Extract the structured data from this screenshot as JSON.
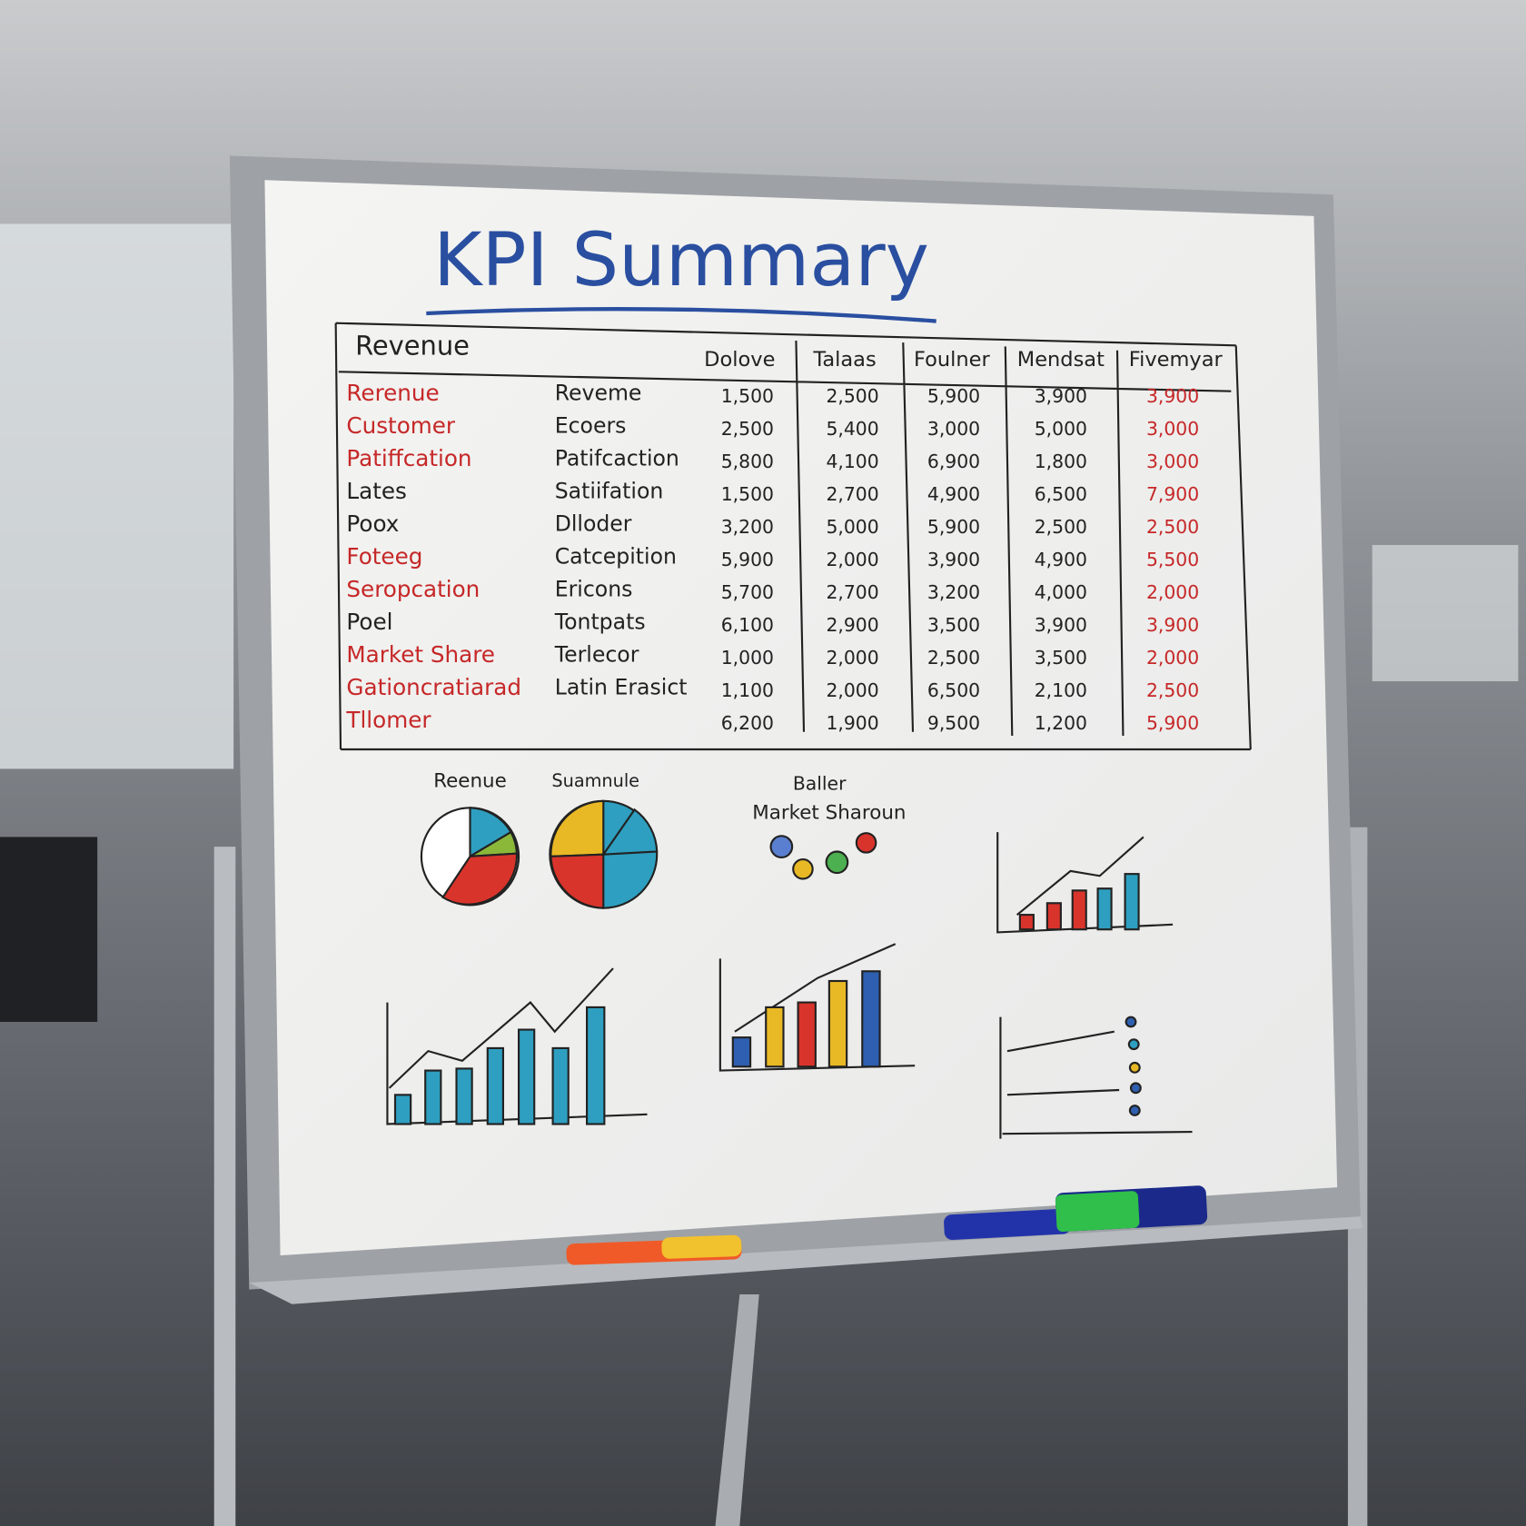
{
  "title": "KPI Summary",
  "table": {
    "header": [
      "Revenue",
      "Dolove",
      "Talaas",
      "Foulner",
      "Mendsat",
      "Fivemyar"
    ],
    "rows": [
      {
        "label": "Rerenue",
        "color": "#c62828",
        "sub": "Reveme",
        "cells": [
          "1,500",
          "2,500",
          "5,900",
          "3,900",
          "3,900"
        ]
      },
      {
        "label": "Customer",
        "color": "#c62828",
        "sub": "Ecoers",
        "cells": [
          "2,500",
          "5,400",
          "3,000",
          "5,000",
          "3,000"
        ]
      },
      {
        "label": "Patiffcation",
        "color": "#c62828",
        "sub": "Patifcaction",
        "cells": [
          "5,800",
          "4,100",
          "6,900",
          "1,800",
          "3,000"
        ]
      },
      {
        "label": "Lates",
        "color": "#222222",
        "sub": "Satiifation",
        "cells": [
          "1,500",
          "2,700",
          "4,900",
          "6,500",
          "7,900"
        ]
      },
      {
        "label": "Poox",
        "color": "#222222",
        "sub": "Dlloder",
        "cells": [
          "3,200",
          "5,000",
          "5,900",
          "2,500",
          "2,500"
        ]
      },
      {
        "label": "Foteeg",
        "color": "#c62828",
        "sub": "Catcepition",
        "cells": [
          "5,900",
          "2,000",
          "3,900",
          "4,900",
          "5,500"
        ]
      },
      {
        "label": "Seropcation",
        "color": "#c62828",
        "sub": "Ericons",
        "cells": [
          "5,700",
          "2,700",
          "3,200",
          "4,000",
          "2,000"
        ]
      },
      {
        "label": "Poel",
        "color": "#222222",
        "sub": "Tontpats",
        "cells": [
          "6,100",
          "2,900",
          "3,500",
          "3,900",
          "3,900"
        ]
      },
      {
        "label": "Market Share",
        "color": "#c62828",
        "sub": "Terlecor",
        "cells": [
          "1,000",
          "2,000",
          "2,500",
          "3,500",
          "2,000"
        ]
      },
      {
        "label": "Gationcratiarad",
        "color": "#c62828",
        "sub": "Latin Erasict",
        "cells": [
          "1,100",
          "2,000",
          "6,500",
          "2,100",
          "2,500"
        ]
      },
      {
        "label": "Tllomer",
        "color": "#c62828",
        "sub": null,
        "cells": [
          "6,200",
          "1,900",
          "9,500",
          "1,200",
          "5,900"
        ]
      }
    ]
  },
  "sketches": {
    "pie_left": "Reenue",
    "pie_right": "Suamnule",
    "bubbles_top": "Baller",
    "bubbles_bottom": "Market Sharoun"
  }
}
